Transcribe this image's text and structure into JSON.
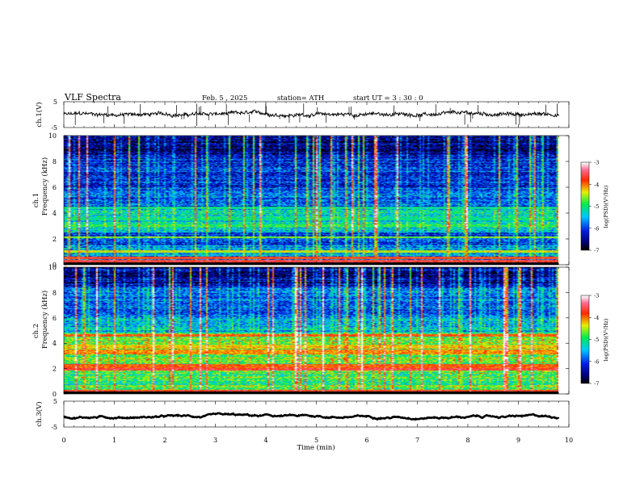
{
  "header": {
    "title": "VLF  Spectra",
    "date": "Feb. 5  , 2025",
    "station": "station= ATH",
    "start_ut": "start  UT  =   3  : 30 : 0"
  },
  "chart_data": [
    {
      "id": "ch1-waveform",
      "type": "line",
      "ylabel": "ch.1(V)",
      "ylim": [
        -5,
        5
      ],
      "yticks": [
        "5",
        "-5"
      ],
      "xlim": [
        0,
        10
      ],
      "x_end": 9.8,
      "baseline": 0.1,
      "trace_color": "#000000"
    },
    {
      "id": "ch1-spectrogram",
      "type": "heatmap",
      "ylabel_line1": "ch.1",
      "ylabel_line2": "Frequency  (kHz)",
      "ylim": [
        0,
        10
      ],
      "yticks": [
        "0",
        "2",
        "4",
        "6",
        "8",
        "10"
      ],
      "xlim": [
        0,
        10
      ],
      "x_end": 9.8,
      "bands": [
        {
          "f": 0.2,
          "level": -3.6,
          "width": 0.12
        },
        {
          "f": 0.5,
          "level": -3.8,
          "width": 0.1
        },
        {
          "f": 1.0,
          "level": -4.4,
          "width": 0.08
        },
        {
          "f": 2.1,
          "level": -4.6,
          "width": 0.08
        },
        {
          "f": 3.0,
          "level": -5.0,
          "width": 0.1
        },
        {
          "f": 3.5,
          "level": -5.1,
          "width": 0.1
        },
        {
          "f": 4.4,
          "level": -5.2,
          "width": 0.1
        }
      ],
      "colorbar": {
        "label": "log(PSD)(V²/Hz)",
        "range": [
          -7,
          -3
        ],
        "ticks": [
          "-3",
          "-4",
          "-5",
          "-6",
          "-7"
        ]
      }
    },
    {
      "id": "ch2-spectrogram",
      "type": "heatmap",
      "ylabel_line1": "ch.2",
      "ylabel_line2": "Frequency  (kHz)",
      "ylim": [
        0,
        10
      ],
      "yticks": [
        "0",
        "2",
        "4",
        "6",
        "8",
        "10"
      ],
      "xlim": [
        0,
        10
      ],
      "x_end": 9.8,
      "bands": [
        {
          "f": 0.2,
          "level": -3.7,
          "width": 0.12
        },
        {
          "f": 1.9,
          "level": -3.6,
          "width": 0.1
        },
        {
          "f": 2.2,
          "level": -3.9,
          "width": 0.15
        },
        {
          "f": 3.3,
          "level": -4.1,
          "width": 0.2
        },
        {
          "f": 3.7,
          "level": -4.3,
          "width": 0.15
        },
        {
          "f": 4.6,
          "level": -3.9,
          "width": 0.1
        }
      ],
      "colorbar": {
        "label": "log(PSD)(V²/Hz)",
        "range": [
          -7,
          -3
        ],
        "ticks": [
          "-3",
          "-4",
          "-5",
          "-6",
          "-7"
        ]
      }
    },
    {
      "id": "ch3-waveform",
      "type": "line",
      "ylabel": "ch.3(V)",
      "ylim": [
        -5,
        5
      ],
      "yticks": [
        "5",
        "-5"
      ],
      "xlim": [
        0,
        10
      ],
      "x_end": 9.8,
      "baseline": -1.0,
      "trace_color": "#000000"
    }
  ],
  "x_axis": {
    "xlabel": "Time  (min)",
    "xlim": [
      0,
      10
    ],
    "ticks": [
      "0",
      "1",
      "2",
      "3",
      "4",
      "5",
      "6",
      "7",
      "8",
      "9",
      "10"
    ]
  }
}
